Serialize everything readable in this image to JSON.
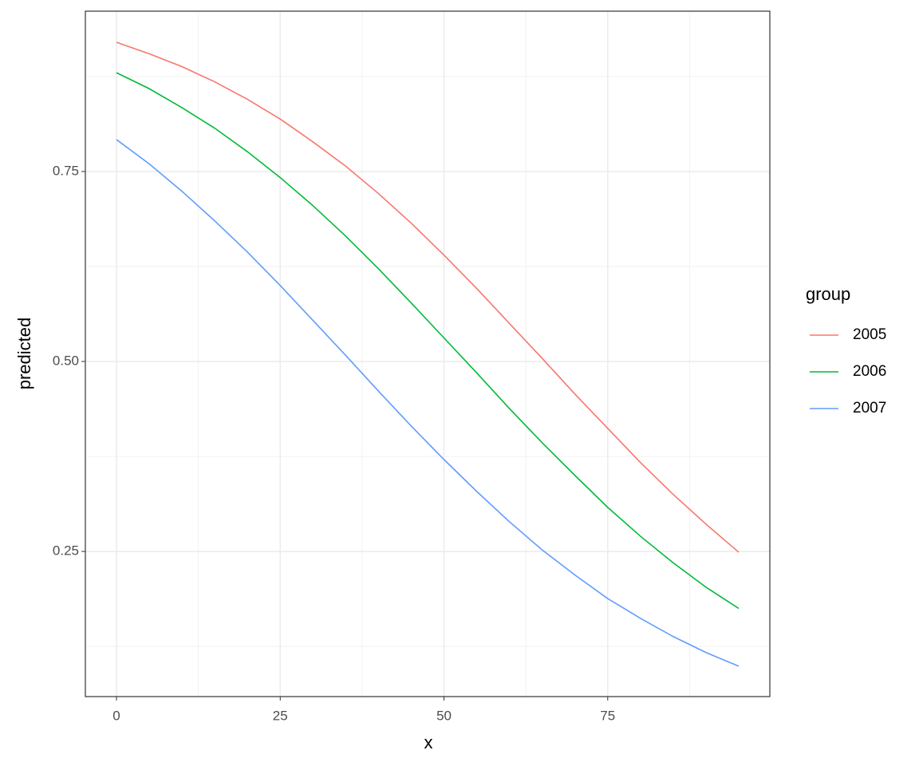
{
  "chart_data": {
    "type": "line",
    "x_label": "x",
    "y_label": "predicted",
    "legend_title": "group",
    "legend_position": "right",
    "x": [
      0,
      5,
      10,
      15,
      20,
      25,
      30,
      35,
      40,
      45,
      50,
      55,
      60,
      65,
      70,
      75,
      80,
      85,
      90,
      95
    ],
    "series": [
      {
        "name": "2005",
        "color": "#F8766D",
        "values": [
          0.92,
          0.905,
          0.888,
          0.868,
          0.845,
          0.819,
          0.789,
          0.757,
          0.721,
          0.682,
          0.64,
          0.596,
          0.55,
          0.504,
          0.457,
          0.412,
          0.367,
          0.325,
          0.286,
          0.249
        ]
      },
      {
        "name": "2006",
        "color": "#00BA38",
        "values": [
          0.88,
          0.859,
          0.834,
          0.807,
          0.776,
          0.742,
          0.705,
          0.665,
          0.622,
          0.577,
          0.531,
          0.485,
          0.438,
          0.393,
          0.35,
          0.308,
          0.27,
          0.235,
          0.203,
          0.175
        ]
      },
      {
        "name": "2007",
        "color": "#619CFF",
        "values": [
          0.792,
          0.76,
          0.724,
          0.685,
          0.644,
          0.6,
          0.554,
          0.508,
          0.461,
          0.415,
          0.371,
          0.329,
          0.289,
          0.252,
          0.219,
          0.188,
          0.162,
          0.138,
          0.117,
          0.099
        ]
      }
    ],
    "xlim": [
      -4.75,
      99.75
    ],
    "xticks": [
      0,
      25,
      50,
      75
    ],
    "xminor": [
      12.5,
      37.5,
      62.5,
      87.5
    ],
    "ylim": [
      0.059,
      0.961
    ],
    "yticks": [
      0.25,
      {
        "value": 0.5,
        "label": "0.50"
      },
      0.75
    ],
    "yminor": [
      0.125,
      0.375,
      0.625,
      0.875
    ],
    "grid": true
  }
}
